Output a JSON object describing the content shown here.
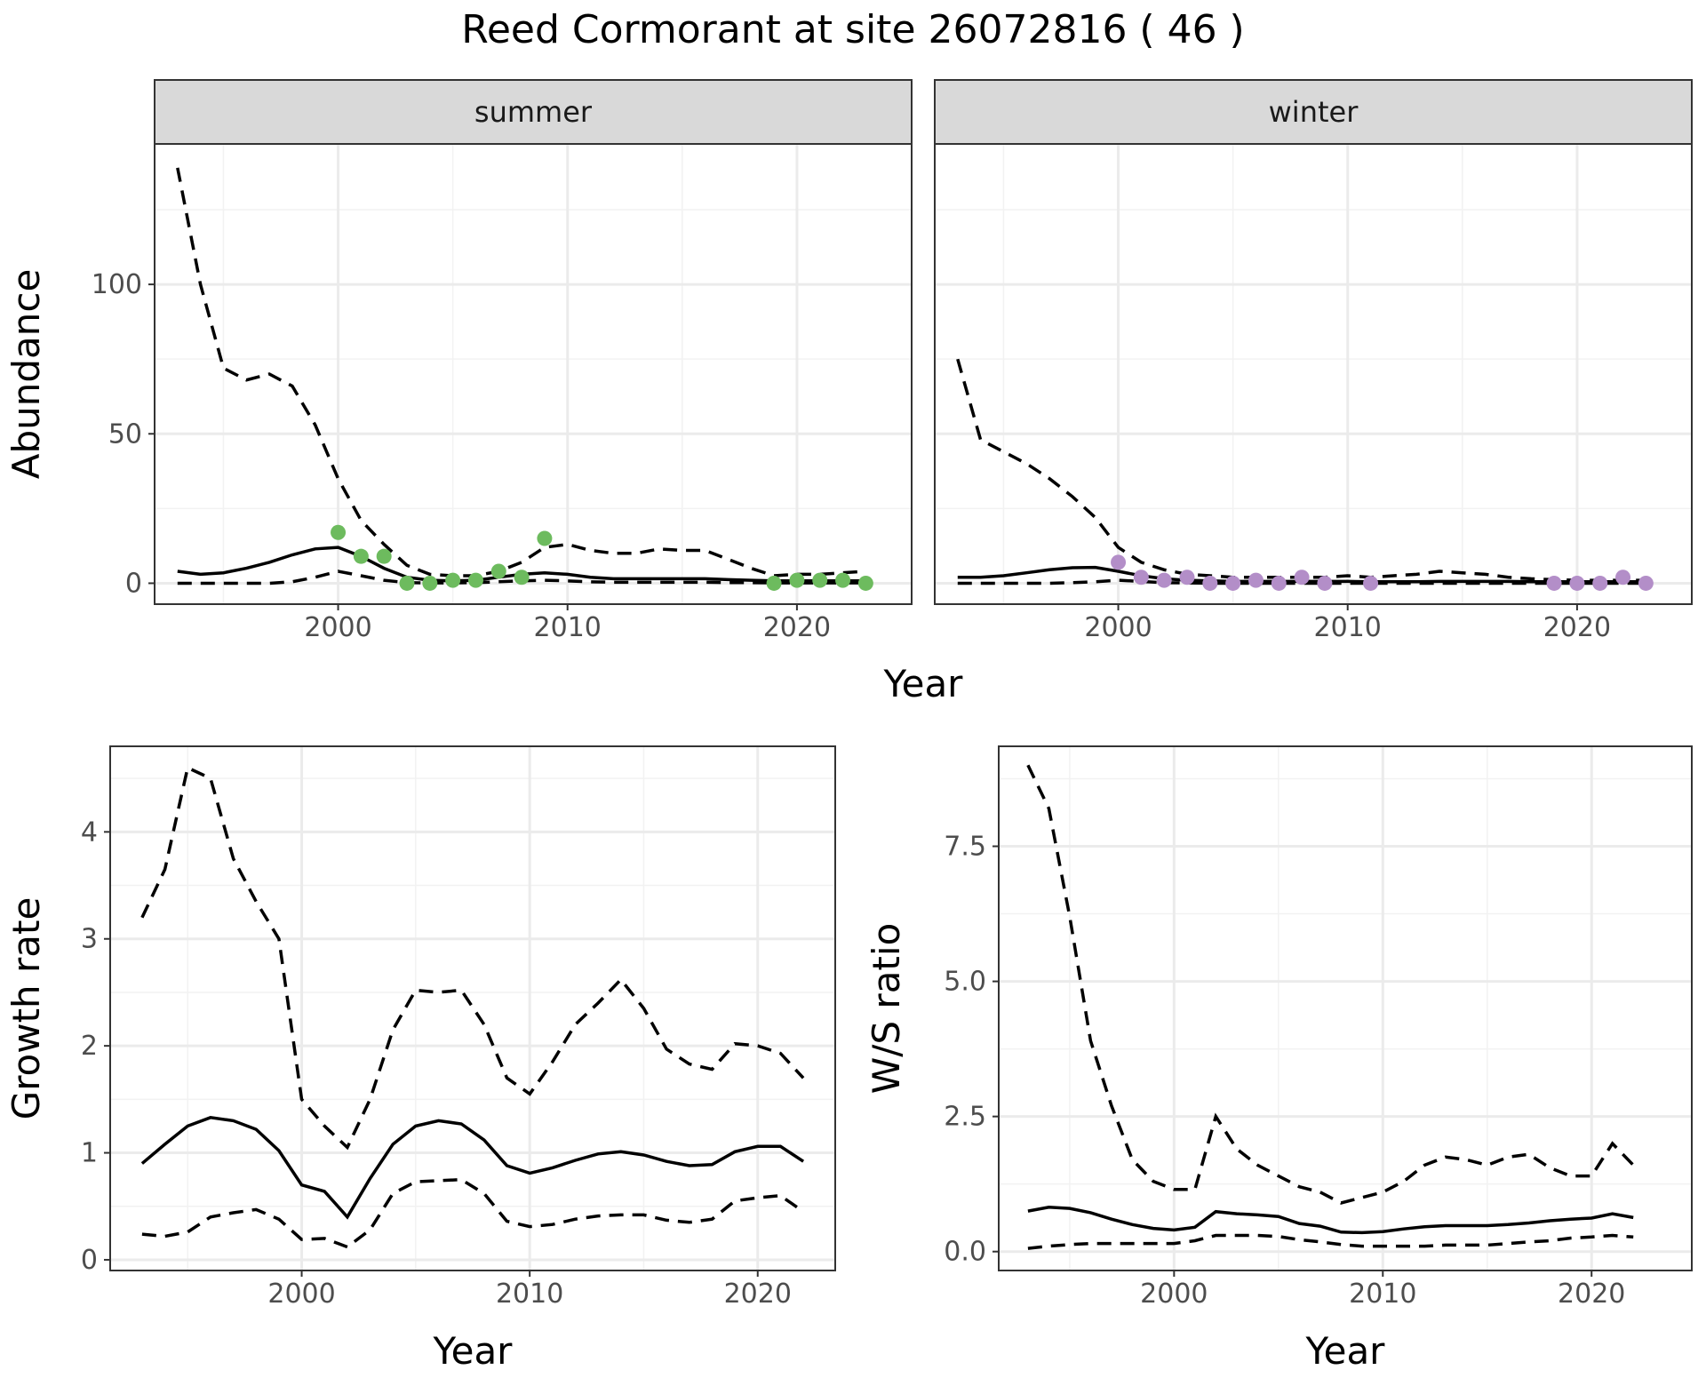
{
  "title": "Reed Cormorant at site 26072816 ( 46 )",
  "colors": {
    "summer_points": "#6dbb5e",
    "winter_points": "#b38ec8",
    "lines": "#000000",
    "strip_bg": "#d9d9d9",
    "grid": "#ebebeb",
    "panel_border": "#333333"
  },
  "chart_data": [
    {
      "id": "abundance",
      "type": "line",
      "facets": [
        "summer",
        "winter"
      ],
      "xlabel": "Year",
      "ylabel": "Abundance",
      "xlim": [
        1992,
        2025
      ],
      "ylim": [
        -7,
        147
      ],
      "xticks": [
        2000,
        2010,
        2020
      ],
      "yticks": [
        0,
        50,
        100
      ],
      "panels": [
        {
          "facet": "summer",
          "point_color": "#6dbb5e",
          "series": [
            {
              "role": "mean",
              "x": [
                1993,
                1994,
                1995,
                1996,
                1997,
                1998,
                1999,
                2000,
                2001,
                2002,
                2003,
                2004,
                2005,
                2006,
                2007,
                2008,
                2009,
                2010,
                2011,
                2012,
                2013,
                2014,
                2015,
                2016,
                2017,
                2018,
                2019,
                2020,
                2021,
                2022,
                2023
              ],
              "y": [
                4,
                3,
                3.5,
                5,
                7,
                9.5,
                11.5,
                12,
                9,
                5,
                2,
                1,
                0.8,
                1,
                2,
                3,
                3.5,
                3,
                2,
                1.5,
                1.5,
                1.5,
                1.5,
                1.5,
                1.2,
                1,
                0.8,
                0.8,
                0.8,
                0.8,
                0.8
              ]
            },
            {
              "role": "upper",
              "x": [
                1993,
                1994,
                1995,
                1996,
                1997,
                1998,
                1999,
                2000,
                2001,
                2002,
                2003,
                2004,
                2005,
                2006,
                2007,
                2008,
                2009,
                2010,
                2011,
                2012,
                2013,
                2014,
                2015,
                2016,
                2017,
                2018,
                2019,
                2020,
                2021,
                2022,
                2023
              ],
              "y": [
                139,
                100,
                72,
                68,
                70,
                66,
                53,
                35,
                21,
                13,
                6,
                3,
                2.5,
                2.5,
                4,
                7,
                12,
                13,
                11,
                10,
                10,
                11.5,
                11,
                11,
                8,
                5,
                2.5,
                3,
                3,
                3.5,
                4
              ]
            },
            {
              "role": "lower",
              "x": [
                1993,
                1994,
                1995,
                1996,
                1997,
                1998,
                1999,
                2000,
                2001,
                2002,
                2003,
                2004,
                2005,
                2006,
                2007,
                2008,
                2009,
                2010,
                2011,
                2012,
                2013,
                2014,
                2015,
                2016,
                2017,
                2018,
                2019,
                2020,
                2021,
                2022,
                2023
              ],
              "y": [
                0,
                0,
                0,
                0,
                0,
                0.5,
                2,
                4,
                2.5,
                1,
                0.2,
                0.1,
                0.1,
                0.2,
                0.5,
                0.8,
                1,
                0.8,
                0.5,
                0.3,
                0.3,
                0.3,
                0.3,
                0.3,
                0.2,
                0.2,
                0.1,
                0.1,
                0.1,
                0.1,
                0.1
              ]
            }
          ],
          "observations": {
            "x": [
              2000,
              2001,
              2002,
              2003,
              2004,
              2005,
              2006,
              2007,
              2008,
              2009,
              2019,
              2020,
              2021,
              2022,
              2023
            ],
            "y": [
              17,
              9,
              9,
              0,
              0,
              1,
              1,
              4,
              2,
              15,
              0,
              1,
              1,
              1,
              0
            ]
          }
        },
        {
          "facet": "winter",
          "point_color": "#b38ec8",
          "series": [
            {
              "role": "mean",
              "x": [
                1993,
                1994,
                1995,
                1996,
                1997,
                1998,
                1999,
                2000,
                2001,
                2002,
                2003,
                2004,
                2005,
                2006,
                2007,
                2008,
                2009,
                2010,
                2011,
                2012,
                2013,
                2014,
                2015,
                2016,
                2017,
                2018,
                2019,
                2020,
                2021,
                2022,
                2023
              ],
              "y": [
                2,
                2,
                2.5,
                3.5,
                4.5,
                5.2,
                5.3,
                4,
                2.5,
                1.5,
                1,
                0.8,
                0.6,
                0.6,
                0.6,
                0.6,
                0.6,
                0.6,
                0.5,
                0.5,
                0.5,
                0.6,
                0.6,
                0.6,
                0.6,
                0.5,
                0.5,
                0.5,
                0.5,
                0.5,
                0.5
              ]
            },
            {
              "role": "upper",
              "x": [
                1993,
                1994,
                1995,
                1996,
                1997,
                1998,
                1999,
                2000,
                2001,
                2002,
                2003,
                2004,
                2005,
                2006,
                2007,
                2008,
                2009,
                2010,
                2011,
                2012,
                2013,
                2014,
                2015,
                2016,
                2017,
                2018,
                2019,
                2020,
                2021,
                2022,
                2023
              ],
              "y": [
                75,
                48,
                44,
                40,
                35,
                29,
                22,
                12,
                7,
                4.5,
                3,
                2.5,
                2,
                2,
                2,
                2,
                2,
                2.5,
                2,
                2.5,
                3,
                4,
                3.5,
                3,
                2,
                1.5,
                1.2,
                1,
                1,
                1,
                1
              ]
            },
            {
              "role": "lower",
              "x": [
                1993,
                1994,
                1995,
                1996,
                1997,
                1998,
                1999,
                2000,
                2001,
                2002,
                2003,
                2004,
                2005,
                2006,
                2007,
                2008,
                2009,
                2010,
                2011,
                2012,
                2013,
                2014,
                2015,
                2016,
                2017,
                2018,
                2019,
                2020,
                2021,
                2022,
                2023
              ],
              "y": [
                0,
                0,
                0,
                0,
                0,
                0.2,
                0.5,
                1,
                0.6,
                0.2,
                0.1,
                0,
                0,
                0,
                0,
                0,
                0,
                0,
                0,
                0,
                0,
                0,
                0,
                0,
                0,
                0,
                0,
                0,
                0,
                0,
                0
              ]
            }
          ],
          "observations": {
            "x": [
              2000,
              2001,
              2002,
              2003,
              2004,
              2005,
              2006,
              2007,
              2008,
              2009,
              2011,
              2019,
              2020,
              2021,
              2022,
              2023
            ],
            "y": [
              7,
              2,
              1,
              2,
              0,
              0,
              1,
              0,
              2,
              0,
              0,
              0,
              0,
              0,
              2,
              0
            ]
          }
        }
      ]
    },
    {
      "id": "growth",
      "type": "line",
      "xlabel": "Year",
      "ylabel": "Growth rate",
      "xlim": [
        1991.6,
        2023.4
      ],
      "ylim": [
        -0.1,
        4.8
      ],
      "xticks": [
        2000,
        2010,
        2020
      ],
      "yticks": [
        0,
        1,
        2,
        3,
        4
      ],
      "series": [
        {
          "role": "mean",
          "x": [
            1993,
            1994,
            1995,
            1996,
            1997,
            1998,
            1999,
            2000,
            2001,
            2002,
            2003,
            2004,
            2005,
            2006,
            2007,
            2008,
            2009,
            2010,
            2011,
            2012,
            2013,
            2014,
            2015,
            2016,
            2017,
            2018,
            2019,
            2020,
            2021,
            2022
          ],
          "y": [
            0.9,
            1.08,
            1.25,
            1.33,
            1.3,
            1.22,
            1.02,
            0.7,
            0.64,
            0.4,
            0.76,
            1.08,
            1.25,
            1.3,
            1.27,
            1.12,
            0.88,
            0.81,
            0.86,
            0.93,
            0.99,
            1.01,
            0.98,
            0.92,
            0.88,
            0.89,
            1.01,
            1.06,
            1.06,
            0.92
          ]
        },
        {
          "role": "upper",
          "x": [
            1993,
            1994,
            1995,
            1996,
            1997,
            1998,
            1999,
            2000,
            2001,
            2002,
            2003,
            2004,
            2005,
            2006,
            2007,
            2008,
            2009,
            2010,
            2011,
            2012,
            2013,
            2014,
            2015,
            2016,
            2017,
            2018,
            2019,
            2020,
            2021,
            2022
          ],
          "y": [
            3.2,
            3.65,
            4.6,
            4.5,
            3.75,
            3.35,
            3.0,
            1.5,
            1.25,
            1.05,
            1.5,
            2.15,
            2.52,
            2.5,
            2.52,
            2.2,
            1.7,
            1.55,
            1.85,
            2.2,
            2.4,
            2.62,
            2.35,
            1.97,
            1.83,
            1.78,
            2.02,
            2.0,
            1.93,
            1.7
          ]
        },
        {
          "role": "lower",
          "x": [
            1993,
            1994,
            1995,
            1996,
            1997,
            1998,
            1999,
            2000,
            2001,
            2002,
            2003,
            2004,
            2005,
            2006,
            2007,
            2008,
            2009,
            2010,
            2011,
            2012,
            2013,
            2014,
            2015,
            2016,
            2017,
            2018,
            2019,
            2020,
            2021,
            2022
          ],
          "y": [
            0.24,
            0.22,
            0.26,
            0.4,
            0.44,
            0.47,
            0.38,
            0.19,
            0.2,
            0.12,
            0.28,
            0.62,
            0.73,
            0.74,
            0.75,
            0.62,
            0.36,
            0.31,
            0.33,
            0.38,
            0.41,
            0.42,
            0.42,
            0.37,
            0.35,
            0.38,
            0.55,
            0.58,
            0.6,
            0.45
          ]
        }
      ]
    },
    {
      "id": "ratio",
      "type": "line",
      "xlabel": "Year",
      "ylabel": "W/S ratio",
      "xlim": [
        1991.6,
        2024.8
      ],
      "ylim": [
        -0.35,
        9.35
      ],
      "xticks": [
        2000,
        2010,
        2020
      ],
      "yticks": [
        "0.0",
        "2.5",
        "5.0",
        "7.5"
      ],
      "series": [
        {
          "role": "mean",
          "x": [
            1993,
            1994,
            1995,
            1996,
            1997,
            1998,
            1999,
            2000,
            2001,
            2002,
            2003,
            2004,
            2005,
            2006,
            2007,
            2008,
            2009,
            2010,
            2011,
            2012,
            2013,
            2014,
            2015,
            2016,
            2017,
            2018,
            2019,
            2020,
            2021,
            2022
          ],
          "y": [
            0.75,
            0.82,
            0.8,
            0.72,
            0.6,
            0.5,
            0.43,
            0.4,
            0.45,
            0.74,
            0.7,
            0.68,
            0.65,
            0.52,
            0.47,
            0.36,
            0.35,
            0.37,
            0.42,
            0.46,
            0.48,
            0.48,
            0.48,
            0.5,
            0.53,
            0.57,
            0.6,
            0.62,
            0.7,
            0.63
          ]
        },
        {
          "role": "upper",
          "x": [
            1993,
            1994,
            1995,
            1996,
            1997,
            1998,
            1999,
            2000,
            2001,
            2002,
            2003,
            2004,
            2005,
            2006,
            2007,
            2008,
            2009,
            2010,
            2011,
            2012,
            2013,
            2014,
            2015,
            2016,
            2017,
            2018,
            2019,
            2020,
            2021,
            2022
          ],
          "y": [
            9.0,
            8.2,
            6.2,
            3.9,
            2.7,
            1.7,
            1.3,
            1.15,
            1.15,
            2.5,
            1.9,
            1.6,
            1.4,
            1.2,
            1.1,
            0.9,
            1.0,
            1.1,
            1.3,
            1.6,
            1.75,
            1.7,
            1.6,
            1.75,
            1.8,
            1.55,
            1.4,
            1.4,
            2.0,
            1.6
          ]
        },
        {
          "role": "lower",
          "x": [
            1993,
            1994,
            1995,
            1996,
            1997,
            1998,
            1999,
            2000,
            2001,
            2002,
            2003,
            2004,
            2005,
            2006,
            2007,
            2008,
            2009,
            2010,
            2011,
            2012,
            2013,
            2014,
            2015,
            2016,
            2017,
            2018,
            2019,
            2020,
            2021,
            2022
          ],
          "y": [
            0.06,
            0.1,
            0.13,
            0.15,
            0.15,
            0.15,
            0.15,
            0.15,
            0.2,
            0.3,
            0.3,
            0.3,
            0.28,
            0.22,
            0.18,
            0.13,
            0.1,
            0.1,
            0.1,
            0.1,
            0.12,
            0.12,
            0.12,
            0.15,
            0.18,
            0.2,
            0.25,
            0.27,
            0.3,
            0.27
          ]
        }
      ]
    }
  ]
}
